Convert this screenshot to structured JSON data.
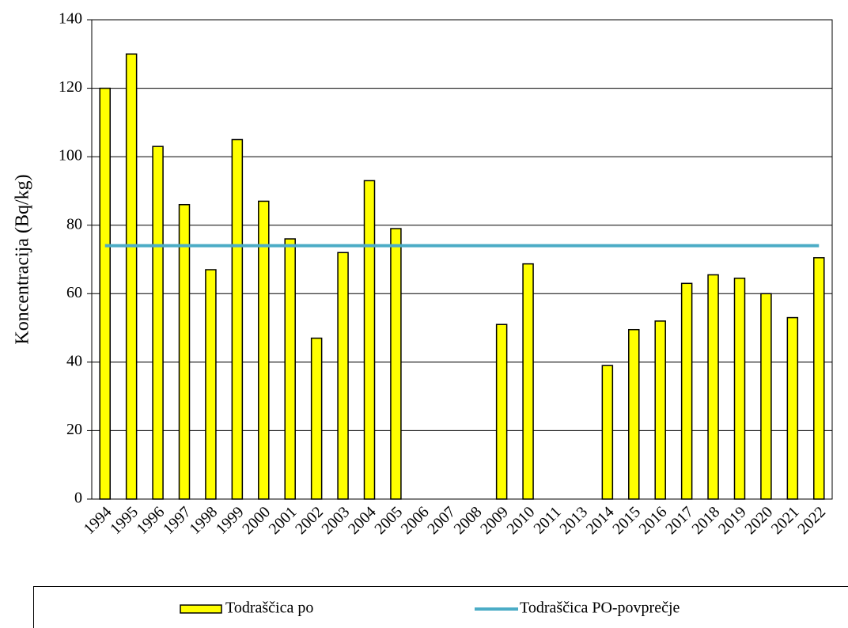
{
  "chart_data": {
    "type": "bar",
    "y_label": "Koncentracija (Bq/kg)",
    "categories": [
      "1994",
      "1995",
      "1996",
      "1997",
      "1998",
      "1999",
      "2000",
      "2001",
      "2002",
      "2003",
      "2004",
      "2005",
      "2006",
      "2007",
      "2008",
      "2009",
      "2010",
      "2011",
      "2013",
      "2014",
      "2015",
      "2016",
      "2017",
      "2018",
      "2019",
      "2020",
      "2021",
      "2022"
    ],
    "series": [
      {
        "name": "Todraščica po",
        "type": "bar",
        "color": "#ffff00",
        "values": [
          120,
          130,
          103,
          86,
          67,
          105,
          87,
          76,
          47,
          72,
          93,
          79,
          null,
          null,
          null,
          51,
          68.7,
          null,
          null,
          39,
          49.5,
          52,
          63,
          65.5,
          64.5,
          60,
          53,
          70.5
        ]
      },
      {
        "name": "Todraščica PO-povprečje",
        "type": "line",
        "color": "#4bacc6",
        "values": [
          74,
          74,
          74,
          74,
          74,
          74,
          74,
          74,
          74,
          74,
          74,
          74,
          74,
          74,
          74,
          74,
          74,
          74,
          74,
          74,
          74,
          74,
          74,
          74,
          74,
          74,
          74,
          74
        ]
      }
    ],
    "ylim": [
      0,
      140
    ],
    "yticks": [
      0,
      20,
      40,
      60,
      80,
      100,
      120,
      140
    ],
    "grid": true
  }
}
